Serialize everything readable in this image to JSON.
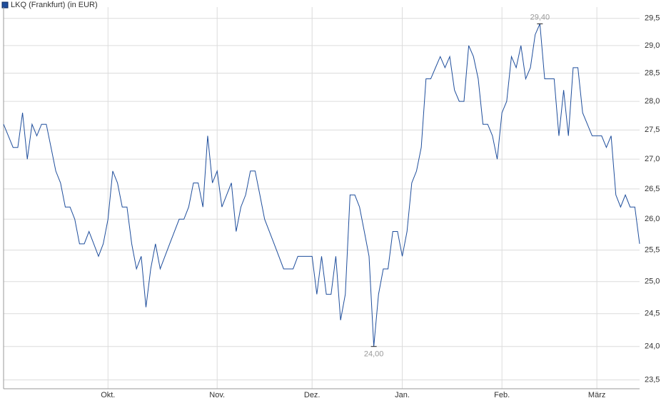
{
  "chart_data": {
    "type": "line",
    "series": [
      {
        "name": "LKQ (Frankfurt) (in EUR)",
        "color": "#1f4e9c",
        "values": [
          27.6,
          27.4,
          27.2,
          27.2,
          27.8,
          27.0,
          27.6,
          27.4,
          27.6,
          27.6,
          27.2,
          26.8,
          26.6,
          26.2,
          26.2,
          26.0,
          25.6,
          25.6,
          25.8,
          25.6,
          25.4,
          25.6,
          26.0,
          26.8,
          26.6,
          26.2,
          26.2,
          25.6,
          25.2,
          25.4,
          24.6,
          25.2,
          25.6,
          25.2,
          25.4,
          25.6,
          25.8,
          26.0,
          26.0,
          26.2,
          26.6,
          26.6,
          26.2,
          27.4,
          26.6,
          26.8,
          26.2,
          26.4,
          26.6,
          25.8,
          26.2,
          26.4,
          26.8,
          26.8,
          26.4,
          26.0,
          25.8,
          25.6,
          25.4,
          25.2,
          25.2,
          25.2,
          25.4,
          25.4,
          25.4,
          25.4,
          24.8,
          25.4,
          24.8,
          24.8,
          25.4,
          24.4,
          24.8,
          26.4,
          26.4,
          26.2,
          25.8,
          25.4,
          24.0,
          24.8,
          25.2,
          25.2,
          25.8,
          25.8,
          25.4,
          25.8,
          26.6,
          26.8,
          27.2,
          28.4,
          28.4,
          28.6,
          28.8,
          28.6,
          28.8,
          28.2,
          28.0,
          28.0,
          29.0,
          28.8,
          28.4,
          27.6,
          27.6,
          27.4,
          27.0,
          27.8,
          28.0,
          28.8,
          28.6,
          29.0,
          28.4,
          28.6,
          29.2,
          29.4,
          28.4,
          28.4,
          28.4,
          27.4,
          28.2,
          27.4,
          28.6,
          28.6,
          27.8,
          27.6,
          27.4,
          27.4,
          27.4,
          27.2,
          27.4,
          26.4,
          26.2,
          26.4,
          26.2,
          26.2,
          25.6
        ]
      }
    ],
    "annotations": [
      {
        "value": 29.4,
        "label": "29,40"
      },
      {
        "value": 24.0,
        "label": "24,00"
      }
    ],
    "xticks": [
      {
        "value": 22,
        "label": "Okt."
      },
      {
        "value": 45,
        "label": "Nov."
      },
      {
        "value": 65,
        "label": "Dez."
      },
      {
        "value": 84,
        "label": "Jan."
      },
      {
        "value": 105,
        "label": "Feb."
      },
      {
        "value": 125,
        "label": "März"
      }
    ],
    "ylim": [
      23.37,
      29.71
    ],
    "log_scale": true,
    "yticks": [
      {
        "value": 23.5,
        "label": "23,5"
      },
      {
        "value": 24,
        "label": "24,0"
      },
      {
        "value": 24.5,
        "label": "24,5"
      },
      {
        "value": 25,
        "label": "25,0"
      },
      {
        "value": 25.5,
        "label": "25,5"
      },
      {
        "value": 26,
        "label": "26,0"
      },
      {
        "value": 26.5,
        "label": "26,5"
      },
      {
        "value": 27,
        "label": "27,0"
      },
      {
        "value": 27.5,
        "label": "27,5"
      },
      {
        "value": 28,
        "label": "28,0"
      },
      {
        "value": 28.5,
        "label": "28,5"
      },
      {
        "value": 29,
        "label": "29,0"
      },
      {
        "value": 29.5,
        "label": "29,5"
      }
    ],
    "grid": true
  }
}
